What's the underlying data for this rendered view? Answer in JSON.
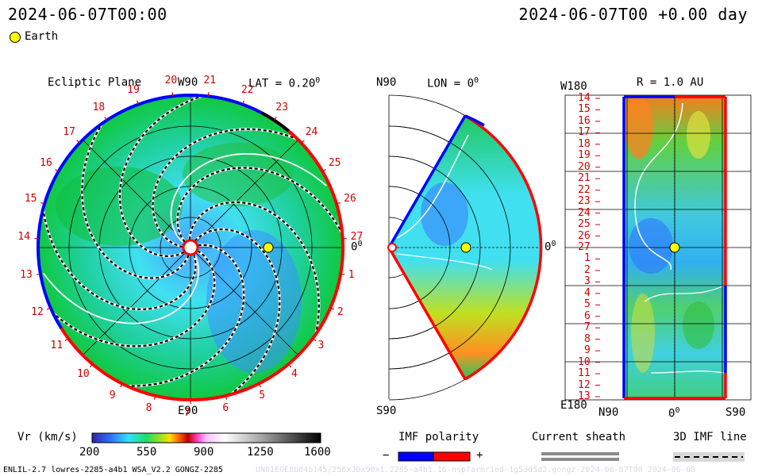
{
  "header": {
    "left_time": "2024-06-07T00:00",
    "right_time": "2024-06-07T00 +0.00 day"
  },
  "legend": {
    "earth_label": "Earth",
    "earth_color": "#ffff00"
  },
  "ecliptic": {
    "title": "Ecliptic Plane",
    "lat_label": "LAT = 0.20",
    "lat_sup": "0",
    "top_label": "W90",
    "bottom_label": "E90",
    "right_label": "0",
    "right_sup": "0",
    "carrington_ticks": [
      "19",
      "20",
      "21",
      "22",
      "23",
      "24",
      "25",
      "26",
      "27",
      "1",
      "2",
      "3",
      "4",
      "5",
      "6",
      "7",
      "8",
      "9",
      "10",
      "11",
      "12",
      "13",
      "14",
      "15",
      "16",
      "17",
      "18"
    ]
  },
  "meridional": {
    "top_label": "N90",
    "lon_label": "LON = 0",
    "lon_sup": "0",
    "bottom_label": "S90",
    "right_label": "0",
    "right_sup": "0"
  },
  "sphere": {
    "title": "R = 1.0 AU",
    "top_left_label": "W180",
    "bottom_left_label": "E180",
    "x_labels": [
      "N90",
      "0",
      "S90"
    ],
    "x_sup": "0",
    "y_ticks": [
      "14",
      "15",
      "16",
      "17",
      "18",
      "19",
      "20",
      "21",
      "22",
      "23",
      "24",
      "25",
      "26",
      "27",
      "1",
      "2",
      "3",
      "4",
      "5",
      "6",
      "7",
      "8",
      "9",
      "10",
      "11",
      "12",
      "13"
    ]
  },
  "colorbar": {
    "label": "Vr (km/s)",
    "ticks": [
      "200",
      "550",
      "900",
      "1250",
      "1600"
    ]
  },
  "imf": {
    "title": "IMF polarity",
    "minus": "−",
    "plus": "+",
    "neg_color": "#0000ff",
    "pos_color": "#ff0000"
  },
  "sheath": {
    "title": "Current sheath"
  },
  "imf3d": {
    "title": "3D IMF line"
  },
  "footer": {
    "left": "ENLIL-2.7 lowres-2285-a4b1 WSA_V2.2 GONGZ-2285",
    "right": "UN01E0E8b04b145/256x30x90x1.2285-a4b1.16-nspfarmr1ed-1g53d5d2.gongz-2024-06-07T00 2024-06-08"
  }
}
